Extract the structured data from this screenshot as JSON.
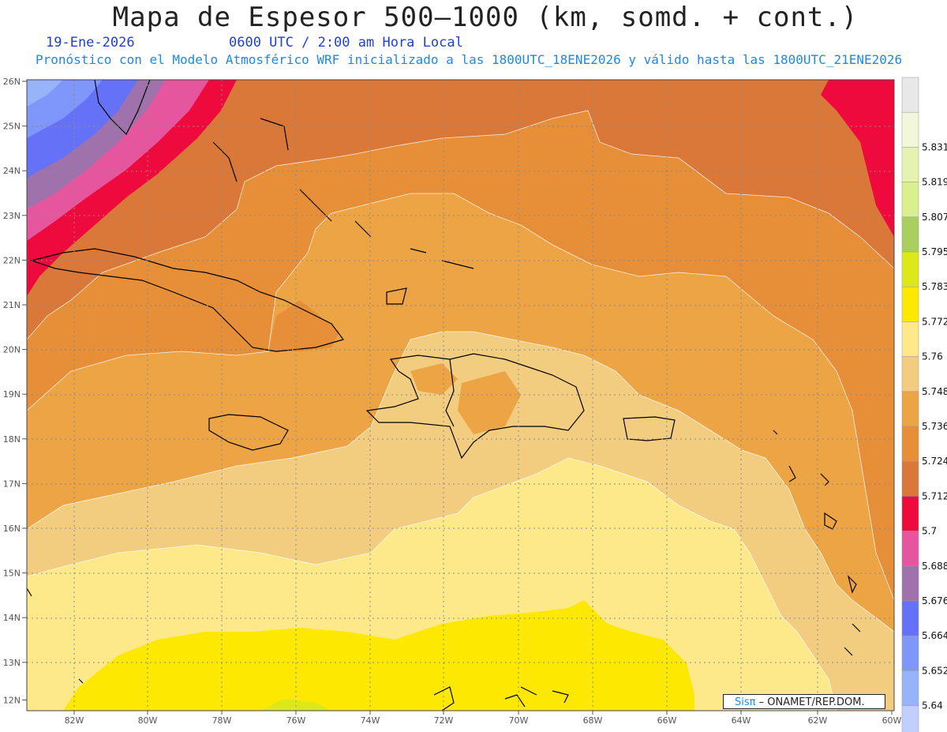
{
  "header": {
    "title": "Mapa de Espesor 500–1000 (km, somd. + cont.)",
    "date": "19-Ene-2026",
    "time": "0600 UTC / 2:00 am Hora Local",
    "description": "Pronóstico con el Modelo Atmosférico WRF inicializado a las 1800UTC_18ENE2026 y válido hasta las  1800UTC_21ENE2026"
  },
  "axes": {
    "lat_labels": [
      "26N",
      "25N",
      "24N",
      "23N",
      "22N",
      "21N",
      "20N",
      "19N",
      "18N",
      "17N",
      "16N",
      "15N",
      "14N",
      "13N",
      "12N"
    ],
    "lon_labels": [
      "82W",
      "80W",
      "78W",
      "76W",
      "74W",
      "72W",
      "70W",
      "68W",
      "66W",
      "64W",
      "62W",
      "60W"
    ]
  },
  "legend": {
    "levels": [
      {
        "label": "",
        "color": "#e8e8e8"
      },
      {
        "label": "5.831",
        "color": "#f2f7da"
      },
      {
        "label": "5.819",
        "color": "#e6f2b0"
      },
      {
        "label": "5.807",
        "color": "#d9f08d"
      },
      {
        "label": "5.795",
        "color": "#a9cf5e"
      },
      {
        "label": "5.783",
        "color": "#dde81a"
      },
      {
        "label": "5.772",
        "color": "#fce800"
      },
      {
        "label": "5.76",
        "color": "#fee98a"
      },
      {
        "label": "5.748",
        "color": "#f2cd7f"
      },
      {
        "label": "5.736",
        "color": "#eca445"
      },
      {
        "label": "5.724",
        "color": "#e78e38"
      },
      {
        "label": "5.712",
        "color": "#da783a"
      },
      {
        "label": "5.7",
        "color": "#ee0a3c"
      },
      {
        "label": "5.688",
        "color": "#e5569f"
      },
      {
        "label": "5.676",
        "color": "#9f72ab"
      },
      {
        "label": "5.664",
        "color": "#6571f7"
      },
      {
        "label": "5.652",
        "color": "#7f97fb"
      },
      {
        "label": "5.64",
        "color": "#97b4fb"
      },
      {
        "label": "",
        "color": "#c0cffd"
      }
    ]
  },
  "credit": {
    "brand": "Sisπ",
    "org": " – ONAMET/REP.DOM."
  }
}
